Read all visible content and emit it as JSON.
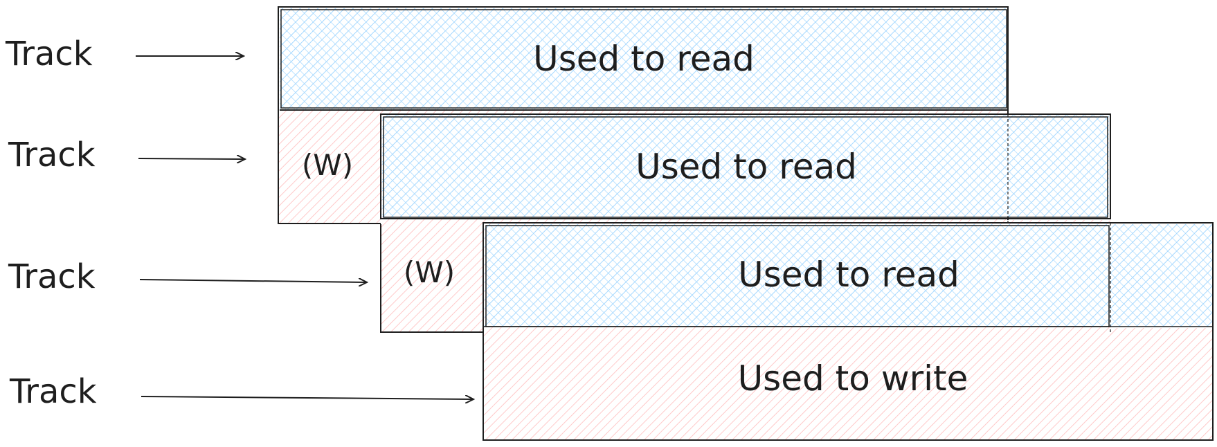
{
  "colors": {
    "read_fill": "#a5d8ff",
    "write_fill": "#ffc9c9",
    "stroke": "#1e1e1e",
    "background": "#ffffff"
  },
  "tracks": [
    {
      "label": "Track"
    },
    {
      "label": "Track"
    },
    {
      "label": "Track"
    },
    {
      "label": "Track"
    }
  ],
  "regions": {
    "read_1": "Used to read",
    "read_2": "Used to read",
    "read_3": "Used to read",
    "write_1": "Used to write",
    "w_marker_1": "(W)",
    "w_marker_2": "(W)"
  }
}
